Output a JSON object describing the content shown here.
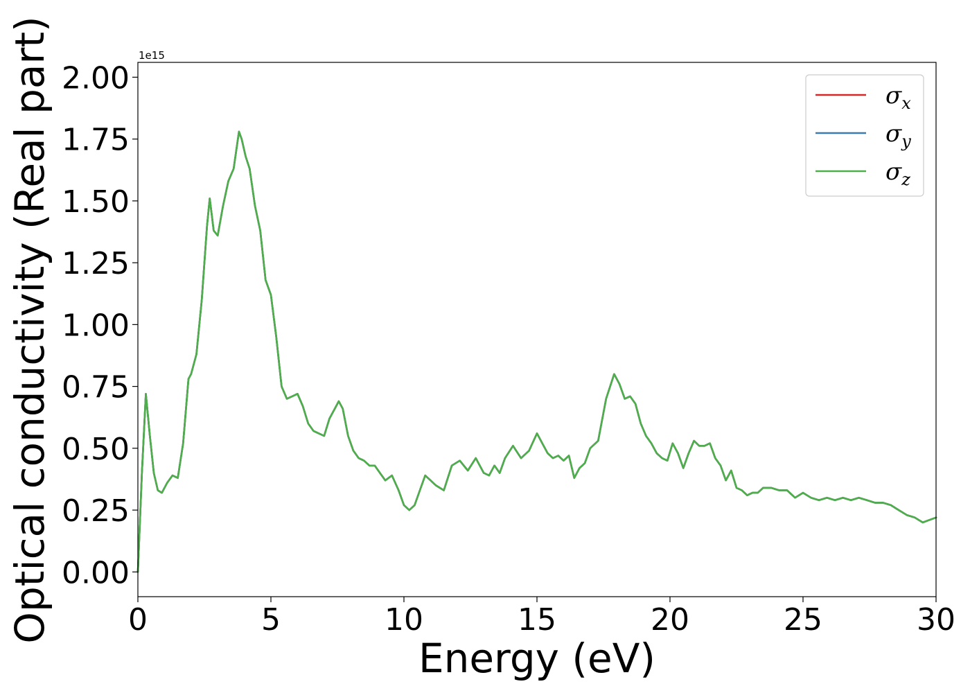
{
  "chart_data": {
    "type": "line",
    "xlabel": "Energy (eV)",
    "ylabel": "Optical conductivity (Real part)",
    "y_offset_label": "1e15",
    "xlim": [
      0,
      30
    ],
    "ylim": [
      -0.1,
      2.06
    ],
    "x_ticks": [
      0,
      5,
      10,
      15,
      20,
      25,
      30
    ],
    "x_tick_labels": [
      "0",
      "5",
      "10",
      "15",
      "20",
      "25",
      "30"
    ],
    "y_ticks": [
      0,
      0.25,
      0.5,
      0.75,
      1.0,
      1.25,
      1.5,
      1.75,
      2.0
    ],
    "y_tick_labels": [
      "0.00",
      "0.25",
      "0.50",
      "0.75",
      "1.00",
      "1.25",
      "1.50",
      "1.75",
      "2.00"
    ],
    "grid": false,
    "legend_placement": "top-right",
    "legend": [
      {
        "symbol": "σ",
        "sub": "x",
        "color": "#d62728"
      },
      {
        "symbol": "σ",
        "sub": "y",
        "color": "#3b7bb0"
      },
      {
        "symbol": "σ",
        "sub": "z",
        "color": "#4daf4a"
      }
    ],
    "x": [
      0,
      0.15,
      0.3,
      0.45,
      0.6,
      0.75,
      0.9,
      1.1,
      1.3,
      1.5,
      1.7,
      1.9,
      2.0,
      2.2,
      2.4,
      2.6,
      2.7,
      2.85,
      3.0,
      3.2,
      3.4,
      3.6,
      3.8,
      3.9,
      4.05,
      4.2,
      4.4,
      4.6,
      4.8,
      5.0,
      5.2,
      5.4,
      5.6,
      5.8,
      6.0,
      6.2,
      6.4,
      6.6,
      6.8,
      7.0,
      7.2,
      7.4,
      7.55,
      7.7,
      7.9,
      8.1,
      8.3,
      8.5,
      8.7,
      8.9,
      9.1,
      9.3,
      9.55,
      9.8,
      10.0,
      10.2,
      10.4,
      10.6,
      10.8,
      11.0,
      11.2,
      11.5,
      11.8,
      12.1,
      12.4,
      12.7,
      13.0,
      13.2,
      13.4,
      13.6,
      13.8,
      14.1,
      14.4,
      14.7,
      15.0,
      15.2,
      15.4,
      15.6,
      15.8,
      16.0,
      16.2,
      16.4,
      16.6,
      16.8,
      17.0,
      17.3,
      17.6,
      17.9,
      18.1,
      18.3,
      18.5,
      18.7,
      18.9,
      19.1,
      19.3,
      19.5,
      19.7,
      19.9,
      20.1,
      20.3,
      20.5,
      20.7,
      20.9,
      21.1,
      21.3,
      21.5,
      21.7,
      21.9,
      22.1,
      22.3,
      22.5,
      22.7,
      22.9,
      23.1,
      23.3,
      23.5,
      23.8,
      24.1,
      24.4,
      24.7,
      25.0,
      25.3,
      25.6,
      25.9,
      26.2,
      26.5,
      26.8,
      27.1,
      27.4,
      27.7,
      28.0,
      28.3,
      28.6,
      28.9,
      29.2,
      29.5,
      29.75,
      30.0
    ],
    "series": [
      {
        "color": "#d62728",
        "values": [
          0,
          0.4,
          0.72,
          0.55,
          0.4,
          0.33,
          0.32,
          0.36,
          0.39,
          0.38,
          0.52,
          0.78,
          0.8,
          0.88,
          1.1,
          1.4,
          1.51,
          1.38,
          1.36,
          1.48,
          1.58,
          1.63,
          1.78,
          1.75,
          1.68,
          1.63,
          1.48,
          1.38,
          1.18,
          1.12,
          0.95,
          0.75,
          0.7,
          0.71,
          0.72,
          0.67,
          0.6,
          0.57,
          0.56,
          0.55,
          0.62,
          0.66,
          0.69,
          0.66,
          0.55,
          0.49,
          0.46,
          0.45,
          0.43,
          0.43,
          0.4,
          0.37,
          0.39,
          0.33,
          0.27,
          0.25,
          0.27,
          0.33,
          0.39,
          0.37,
          0.35,
          0.33,
          0.43,
          0.45,
          0.41,
          0.46,
          0.4,
          0.39,
          0.43,
          0.4,
          0.46,
          0.51,
          0.46,
          0.49,
          0.56,
          0.52,
          0.48,
          0.46,
          0.47,
          0.45,
          0.47,
          0.38,
          0.42,
          0.44,
          0.5,
          0.53,
          0.7,
          0.8,
          0.76,
          0.7,
          0.71,
          0.68,
          0.6,
          0.55,
          0.52,
          0.48,
          0.46,
          0.45,
          0.52,
          0.48,
          0.42,
          0.48,
          0.53,
          0.51,
          0.51,
          0.52,
          0.46,
          0.43,
          0.37,
          0.41,
          0.34,
          0.33,
          0.31,
          0.32,
          0.32,
          0.34,
          0.34,
          0.33,
          0.33,
          0.3,
          0.32,
          0.3,
          0.29,
          0.3,
          0.29,
          0.3,
          0.29,
          0.3,
          0.29,
          0.28,
          0.28,
          0.27,
          0.25,
          0.23,
          0.22,
          0.2,
          0.21,
          0.22
        ]
      },
      {
        "color": "#3b7bb0",
        "values": [
          0,
          0.4,
          0.72,
          0.55,
          0.4,
          0.33,
          0.32,
          0.36,
          0.39,
          0.38,
          0.52,
          0.78,
          0.8,
          0.88,
          1.1,
          1.4,
          1.51,
          1.38,
          1.36,
          1.48,
          1.58,
          1.63,
          1.78,
          1.75,
          1.68,
          1.63,
          1.48,
          1.38,
          1.18,
          1.12,
          0.95,
          0.75,
          0.7,
          0.71,
          0.72,
          0.67,
          0.6,
          0.57,
          0.56,
          0.55,
          0.62,
          0.66,
          0.69,
          0.66,
          0.55,
          0.49,
          0.46,
          0.45,
          0.43,
          0.43,
          0.4,
          0.37,
          0.39,
          0.33,
          0.27,
          0.25,
          0.27,
          0.33,
          0.39,
          0.37,
          0.35,
          0.33,
          0.43,
          0.45,
          0.41,
          0.46,
          0.4,
          0.39,
          0.43,
          0.4,
          0.46,
          0.51,
          0.46,
          0.49,
          0.56,
          0.52,
          0.48,
          0.46,
          0.47,
          0.45,
          0.47,
          0.38,
          0.42,
          0.44,
          0.5,
          0.53,
          0.7,
          0.8,
          0.76,
          0.7,
          0.71,
          0.68,
          0.6,
          0.55,
          0.52,
          0.48,
          0.46,
          0.45,
          0.52,
          0.48,
          0.42,
          0.48,
          0.53,
          0.51,
          0.51,
          0.52,
          0.46,
          0.43,
          0.37,
          0.41,
          0.34,
          0.33,
          0.31,
          0.32,
          0.32,
          0.34,
          0.34,
          0.33,
          0.33,
          0.3,
          0.32,
          0.3,
          0.29,
          0.3,
          0.29,
          0.3,
          0.29,
          0.3,
          0.29,
          0.28,
          0.28,
          0.27,
          0.25,
          0.23,
          0.22,
          0.2,
          0.21,
          0.22
        ]
      },
      {
        "color": "#4daf4a",
        "values": [
          0,
          0.4,
          0.72,
          0.55,
          0.4,
          0.33,
          0.32,
          0.36,
          0.39,
          0.38,
          0.52,
          0.78,
          0.8,
          0.88,
          1.1,
          1.4,
          1.51,
          1.38,
          1.36,
          1.48,
          1.58,
          1.63,
          1.78,
          1.75,
          1.68,
          1.63,
          1.48,
          1.38,
          1.18,
          1.12,
          0.95,
          0.75,
          0.7,
          0.71,
          0.72,
          0.67,
          0.6,
          0.57,
          0.56,
          0.55,
          0.62,
          0.66,
          0.69,
          0.66,
          0.55,
          0.49,
          0.46,
          0.45,
          0.43,
          0.43,
          0.4,
          0.37,
          0.39,
          0.33,
          0.27,
          0.25,
          0.27,
          0.33,
          0.39,
          0.37,
          0.35,
          0.33,
          0.43,
          0.45,
          0.41,
          0.46,
          0.4,
          0.39,
          0.43,
          0.4,
          0.46,
          0.51,
          0.46,
          0.49,
          0.56,
          0.52,
          0.48,
          0.46,
          0.47,
          0.45,
          0.47,
          0.38,
          0.42,
          0.44,
          0.5,
          0.53,
          0.7,
          0.8,
          0.76,
          0.7,
          0.71,
          0.68,
          0.6,
          0.55,
          0.52,
          0.48,
          0.46,
          0.45,
          0.52,
          0.48,
          0.42,
          0.48,
          0.53,
          0.51,
          0.51,
          0.52,
          0.46,
          0.43,
          0.37,
          0.41,
          0.34,
          0.33,
          0.31,
          0.32,
          0.32,
          0.34,
          0.34,
          0.33,
          0.33,
          0.3,
          0.32,
          0.3,
          0.29,
          0.3,
          0.29,
          0.3,
          0.29,
          0.3,
          0.29,
          0.28,
          0.28,
          0.27,
          0.25,
          0.23,
          0.22,
          0.2,
          0.21,
          0.22
        ]
      }
    ]
  }
}
